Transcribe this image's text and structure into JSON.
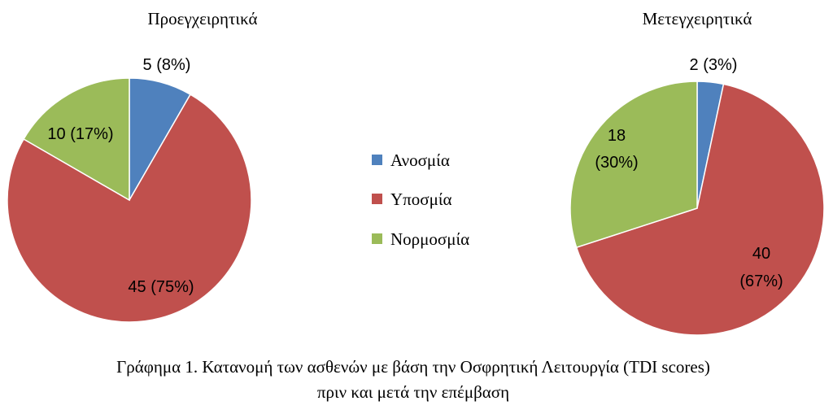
{
  "chart_data": [
    {
      "type": "pie",
      "title": "Προεγχειρητικά",
      "categories": [
        "Ανοσμία",
        "Υποσμία",
        "Νορμοσμία"
      ],
      "values": [
        5,
        45,
        10
      ],
      "percentages": [
        8,
        75,
        17
      ],
      "data_labels": [
        "5 (8%)",
        "45 (75%)",
        "10 (17%)"
      ]
    },
    {
      "type": "pie",
      "title": "Μετεγχειρητικά",
      "categories": [
        "Ανοσμία",
        "Υποσμία",
        "Νορμοσμία"
      ],
      "values": [
        2,
        40,
        18
      ],
      "percentages": [
        3,
        67,
        30
      ],
      "data_labels": [
        "2 (3%)",
        "40 (67%)",
        "18 (30%)"
      ]
    }
  ],
  "legend": {
    "placement": "center",
    "items": [
      {
        "label": "Ανοσμία",
        "color": "#4F81BD"
      },
      {
        "label": "Υποσμία",
        "color": "#C0504D"
      },
      {
        "label": "Νορμοσμία",
        "color": "#9BBB59"
      }
    ]
  },
  "caption": {
    "line1": "Γράφημα 1.  Κατανομή των ασθενών με βάση την  Οσφρητική Λειτουργία (TDI scores)",
    "line2": "πριν και μετά την επέμβαση"
  }
}
